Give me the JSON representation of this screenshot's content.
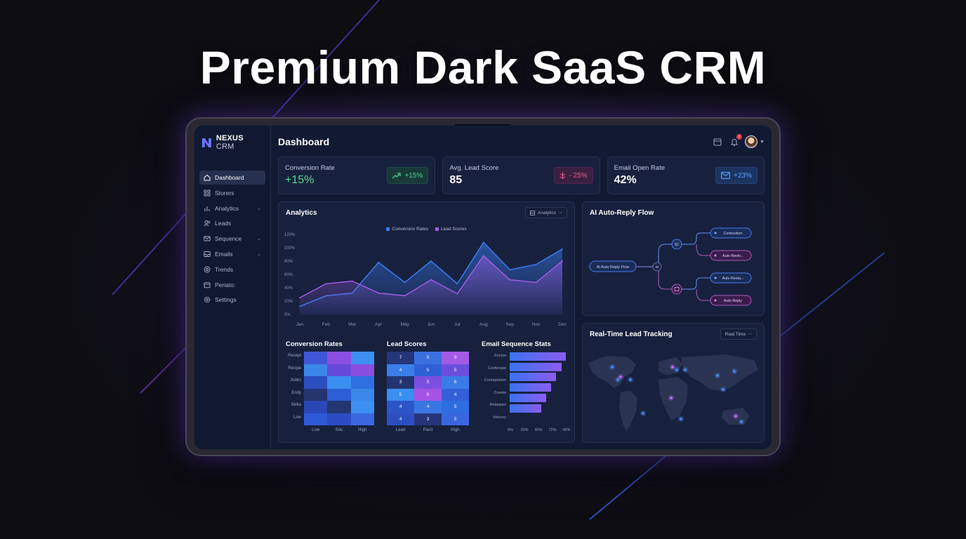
{
  "hero_title": "Premium Dark SaaS CRM",
  "brand": {
    "name": "NEXUS",
    "suffix": "CRM"
  },
  "sidebar": {
    "items": [
      {
        "label": "Dashboard",
        "icon": "home-icon",
        "active": true,
        "chevron": false
      },
      {
        "label": "Storers",
        "icon": "grid-icon",
        "active": false,
        "chevron": false
      },
      {
        "label": "Analytics",
        "icon": "bar-chart-icon",
        "active": false,
        "chevron": true
      },
      {
        "label": "Leads",
        "icon": "users-icon",
        "active": false,
        "chevron": false
      },
      {
        "label": "Sequence",
        "icon": "mail-icon",
        "active": false,
        "chevron": true
      },
      {
        "label": "Emails",
        "icon": "inbox-icon",
        "active": false,
        "chevron": true
      },
      {
        "label": "Trends",
        "icon": "trends-icon",
        "active": false,
        "chevron": false
      },
      {
        "label": "Periato:",
        "icon": "calendar-icon",
        "active": false,
        "chevron": false
      },
      {
        "label": "Settings",
        "icon": "gear-icon",
        "active": false,
        "chevron": false
      }
    ]
  },
  "header": {
    "title": "Dashboard",
    "notification_count": "2"
  },
  "kpis": [
    {
      "label": "Conversion Rate",
      "value": "+15%",
      "chip": "+15%",
      "chip_icon": "trend-up-icon"
    },
    {
      "label": "Avg. Lead Score",
      "value": "85",
      "chip": "- 25%",
      "chip_icon": "trend-down-icon"
    },
    {
      "label": "Email Open Rate",
      "value": "42%",
      "chip": "+23%",
      "chip_icon": "mail-icon"
    }
  ],
  "analytics": {
    "title": "Analytics",
    "dropdown": "Analytics",
    "legend": [
      "Conversion Rates",
      "Lead Scores"
    ]
  },
  "chart_data": [
    {
      "type": "area",
      "categories": [
        "Jan",
        "Feb",
        "Mar",
        "Apr",
        "May",
        "Jun",
        "Jul",
        "Aug",
        "Sep",
        "Nov",
        "Dec"
      ],
      "ylim": [
        0,
        120
      ],
      "yticks": [
        "0%",
        "20%",
        "40%",
        "60%",
        "80%",
        "100%",
        "120%"
      ],
      "series": [
        {
          "name": "Conversion Rates",
          "color": "#3b7bf0",
          "values": [
            12,
            28,
            32,
            78,
            48,
            80,
            46,
            108,
            67,
            75,
            98
          ]
        },
        {
          "name": "Lead Scores",
          "color": "#a05ce6",
          "values": [
            25,
            46,
            50,
            32,
            28,
            52,
            31,
            88,
            52,
            48,
            80
          ]
        }
      ]
    },
    {
      "type": "heatmap",
      "title": "Conversion Rates",
      "rows": [
        "Recept",
        "Recipe",
        "Jodes",
        "Endy",
        "Skiita",
        "Low"
      ],
      "cols": [
        "Low",
        "Sdo",
        "High"
      ],
      "colors": [
        [
          "#3e57d6",
          "#8a4fe0",
          "#3f8ff0"
        ],
        [
          "#3a87ea",
          "#6549d9",
          "#8a4ddd"
        ],
        [
          "#2b4fbf",
          "#3a8ff0",
          "#2f6fe0"
        ],
        [
          "#24356f",
          "#2c5fd6",
          "#3a87ea"
        ],
        [
          "#2a47b6",
          "#233672",
          "#3d8ff2"
        ],
        [
          "#2e5ad8",
          "#2c4cc6",
          "#3a66df"
        ]
      ]
    },
    {
      "type": "heatmap",
      "title": "Lead Scores",
      "rows": [],
      "cols": [
        "Lead",
        "Pacit",
        "High"
      ],
      "values": [
        [
          "7",
          "5",
          "9"
        ],
        [
          "4",
          "5",
          "5"
        ],
        [
          "3",
          "5",
          "6"
        ],
        [
          "5",
          "6",
          "4"
        ],
        [
          "4",
          "4",
          "5"
        ],
        [
          "4",
          "3",
          "5"
        ]
      ],
      "colors": [
        [
          "#25357a",
          "#3a6fe0",
          "#a45be6"
        ],
        [
          "#3a7fe8",
          "#2f5fd6",
          "#6a4fde"
        ],
        [
          "#233471",
          "#7b4fe0",
          "#3b7be8"
        ],
        [
          "#3a8ff0",
          "#a453e6",
          "#3360d8"
        ],
        [
          "#2c56c8",
          "#3a76e3",
          "#2f6ee0"
        ],
        [
          "#2c4fc0",
          "#26357a",
          "#3a66df"
        ]
      ]
    },
    {
      "type": "bar",
      "title": "Email Sequence Stats",
      "categories": [
        "Encion",
        "Conferrate",
        "Conmptotion",
        "Covnto",
        "Relaspen",
        "Velocoy"
      ],
      "values": [
        98,
        90,
        80,
        72,
        63,
        55
      ],
      "xticks": [
        "0%",
        "22%",
        "30%",
        "72%",
        "00%"
      ]
    }
  ],
  "flow": {
    "title": "AI Auto-Reply Flow",
    "start": "AI Auto Reply Flow",
    "or": "or",
    "node_sc": "SC",
    "nodes": [
      "Conbsotion",
      "Auto Reolv...",
      "Auto Resta...",
      "Auto Reply"
    ]
  },
  "tracking": {
    "title": "Real-Time Lead Tracking",
    "dropdown": "Real Time"
  }
}
